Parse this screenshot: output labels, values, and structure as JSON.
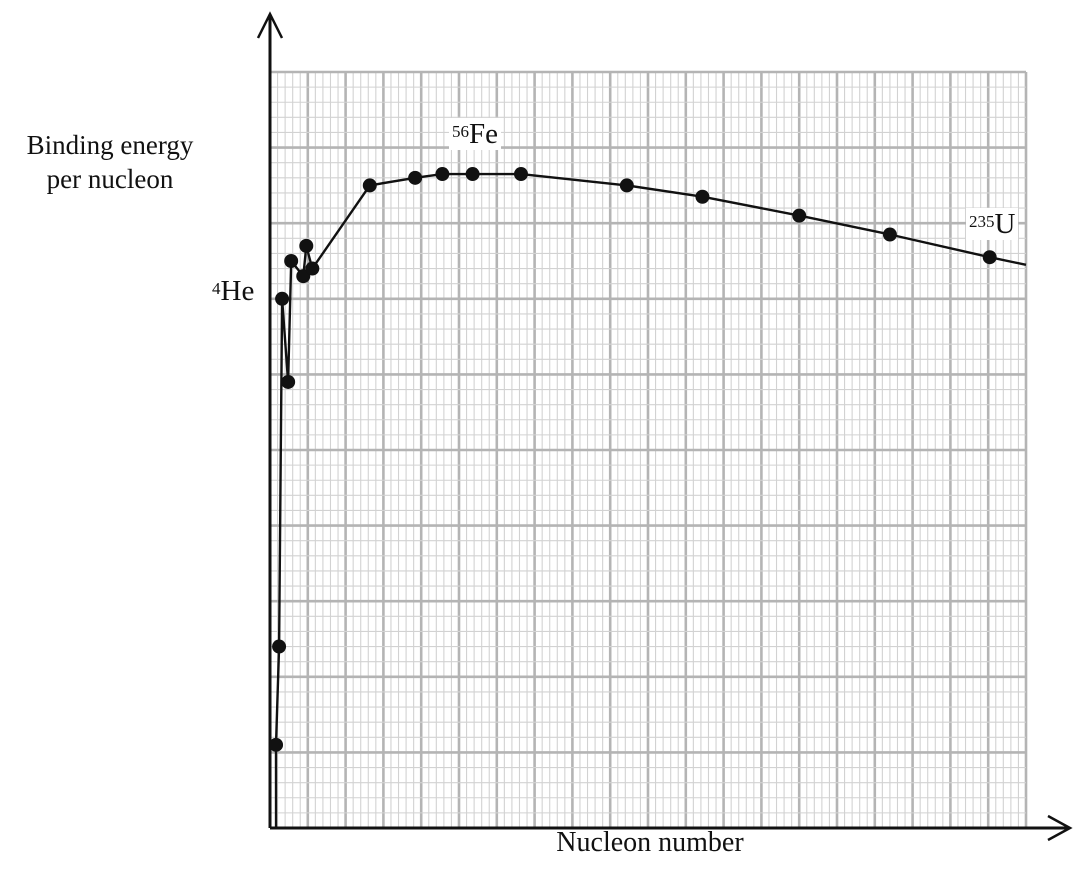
{
  "chart_data": {
    "type": "line",
    "title": "",
    "xlabel": "Nucleon number",
    "ylabel_lines": [
      "Binding energy",
      "per nucleon"
    ],
    "xlim": [
      0,
      250
    ],
    "ylim": [
      0,
      10
    ],
    "grid": {
      "minor": true,
      "major_every": 5,
      "minor_count_x": 100,
      "minor_count_y": 50
    },
    "markers": true,
    "series": [
      {
        "points": [
          {
            "x": 2,
            "y": 1.1
          },
          {
            "x": 3,
            "y": 2.4
          },
          {
            "x": 4,
            "y": 7.0
          },
          {
            "x": 6,
            "y": 5.9
          },
          {
            "x": 7,
            "y": 7.5
          },
          {
            "x": 11,
            "y": 7.3
          },
          {
            "x": 12,
            "y": 7.7
          },
          {
            "x": 14,
            "y": 7.4
          },
          {
            "x": 33,
            "y": 8.5
          },
          {
            "x": 48,
            "y": 8.6
          },
          {
            "x": 57,
            "y": 8.65
          },
          {
            "x": 67,
            "y": 8.65
          },
          {
            "x": 83,
            "y": 8.65
          },
          {
            "x": 118,
            "y": 8.5
          },
          {
            "x": 143,
            "y": 8.35
          },
          {
            "x": 175,
            "y": 8.1
          },
          {
            "x": 205,
            "y": 7.85
          },
          {
            "x": 238,
            "y": 7.55
          }
        ],
        "tail_end": {
          "x": 250,
          "y": 7.45
        }
      }
    ],
    "annotations": [
      {
        "key": "he",
        "mass": "4",
        "symbol": "He"
      },
      {
        "key": "fe",
        "mass": "56",
        "symbol": "Fe"
      },
      {
        "key": "u",
        "mass": "235",
        "symbol": "U"
      }
    ]
  },
  "labels": {
    "ylabel_line1": "Binding energy",
    "ylabel_line2": "per nucleon",
    "xlabel": "Nucleon number",
    "he_mass": "4",
    "he_symbol": "He",
    "fe_mass": "56",
    "fe_symbol": "Fe",
    "u_mass": "235",
    "u_symbol": "U"
  },
  "colors": {
    "minor_grid": "#d2d2d2",
    "major_grid": "#b4b4b4",
    "axis": "#111111",
    "line": "#111111",
    "marker": "#111111"
  }
}
